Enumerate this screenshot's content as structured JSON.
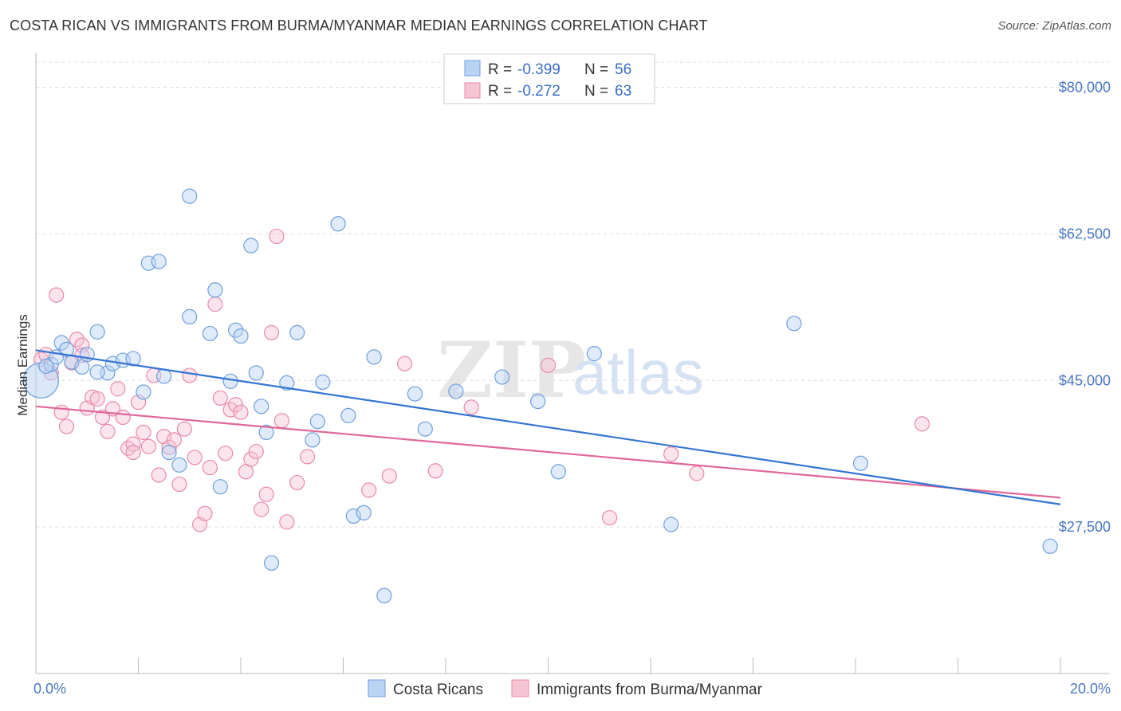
{
  "title": "COSTA RICAN VS IMMIGRANTS FROM BURMA/MYANMAR MEDIAN EARNINGS CORRELATION CHART",
  "source": "Source: ZipAtlas.com",
  "watermark": {
    "part1": "ZIP",
    "part2": "atlas"
  },
  "colors": {
    "blue_fill": "#b9d3f3",
    "blue_stroke": "#6e9fdc",
    "blue_line": "#3474d4",
    "pink_fill": "#f7c4d4",
    "pink_stroke": "#e88aa8",
    "pink_line": "#e0679a",
    "tick_text": "#4a78c2",
    "grid": "#dddddd"
  },
  "legend": {
    "rows": [
      {
        "r_label": "R = ",
        "r_value": "-0.399",
        "n_label": "N = ",
        "n_value": "56"
      },
      {
        "r_label": "R = ",
        "r_value": "-0.272",
        "n_label": "N = ",
        "n_value": "63"
      }
    ]
  },
  "chart_data": {
    "type": "scatter",
    "title": "COSTA RICAN VS IMMIGRANTS FROM BURMA/MYANMAR MEDIAN EARNINGS CORRELATION CHART",
    "xlabel": "",
    "ylabel": "Median Earnings",
    "xlim": [
      0,
      20
    ],
    "ylim": [
      10000,
      83000
    ],
    "x_tick_labels": [
      "0.0%",
      "20.0%"
    ],
    "y_ticks": [
      27500,
      45000,
      62500,
      80000
    ],
    "y_tick_labels": [
      "$27,500",
      "$45,000",
      "$62,500",
      "$80,000"
    ],
    "grid": "horizontal dashed",
    "legend_position": "top-center",
    "series": [
      {
        "name": "Costa Ricans",
        "color": "#6e9fdc",
        "trend": {
          "x": [
            0,
            20
          ],
          "y": [
            48600,
            30200
          ]
        },
        "points": [
          [
            0.1,
            45000
          ],
          [
            0.3,
            46900
          ],
          [
            0.4,
            47800
          ],
          [
            0.5,
            49500
          ],
          [
            0.6,
            48700
          ],
          [
            0.7,
            47200
          ],
          [
            0.9,
            46600
          ],
          [
            1.0,
            48100
          ],
          [
            1.2,
            50800
          ],
          [
            1.4,
            45900
          ],
          [
            1.5,
            47000
          ],
          [
            1.7,
            47400
          ],
          [
            1.9,
            47600
          ],
          [
            2.1,
            43600
          ],
          [
            2.2,
            59000
          ],
          [
            2.4,
            59200
          ],
          [
            2.5,
            45500
          ],
          [
            2.6,
            36400
          ],
          [
            2.8,
            34900
          ],
          [
            3.0,
            52600
          ],
          [
            3.0,
            67000
          ],
          [
            3.4,
            50600
          ],
          [
            3.5,
            55800
          ],
          [
            3.6,
            32300
          ],
          [
            3.8,
            44900
          ],
          [
            3.9,
            51000
          ],
          [
            4.0,
            50300
          ],
          [
            4.2,
            61100
          ],
          [
            4.3,
            45900
          ],
          [
            4.4,
            41900
          ],
          [
            4.5,
            38800
          ],
          [
            4.6,
            23200
          ],
          [
            4.9,
            44700
          ],
          [
            5.1,
            50700
          ],
          [
            5.4,
            37900
          ],
          [
            5.5,
            40100
          ],
          [
            5.6,
            44800
          ],
          [
            5.9,
            63700
          ],
          [
            6.1,
            40800
          ],
          [
            6.2,
            28800
          ],
          [
            6.4,
            29200
          ],
          [
            6.6,
            47800
          ],
          [
            6.8,
            19300
          ],
          [
            7.4,
            43400
          ],
          [
            7.6,
            39200
          ],
          [
            8.2,
            43700
          ],
          [
            9.1,
            45400
          ],
          [
            9.8,
            42500
          ],
          [
            10.2,
            34100
          ],
          [
            10.9,
            48200
          ],
          [
            12.4,
            27800
          ],
          [
            14.8,
            51800
          ],
          [
            16.1,
            35100
          ],
          [
            19.8,
            25200
          ],
          [
            0.2,
            46700
          ],
          [
            1.2,
            46000
          ]
        ]
      },
      {
        "name": "Immigrants from Burma/Myanmar",
        "color": "#e88aa8",
        "trend": {
          "x": [
            0,
            20
          ],
          "y": [
            41900,
            31000
          ]
        },
        "points": [
          [
            0.1,
            47500
          ],
          [
            0.2,
            48100
          ],
          [
            0.3,
            45900
          ],
          [
            0.4,
            55200
          ],
          [
            0.5,
            41200
          ],
          [
            0.6,
            39500
          ],
          [
            0.7,
            47100
          ],
          [
            0.8,
            49900
          ],
          [
            0.9,
            49200
          ],
          [
            1.0,
            41700
          ],
          [
            1.1,
            43000
          ],
          [
            1.2,
            42800
          ],
          [
            1.3,
            40600
          ],
          [
            1.4,
            38900
          ],
          [
            1.5,
            41600
          ],
          [
            1.6,
            44000
          ],
          [
            1.7,
            40600
          ],
          [
            1.8,
            36900
          ],
          [
            1.9,
            37400
          ],
          [
            2.0,
            42400
          ],
          [
            2.1,
            38800
          ],
          [
            2.2,
            37100
          ],
          [
            2.3,
            45600
          ],
          [
            2.4,
            33700
          ],
          [
            2.5,
            38300
          ],
          [
            2.6,
            37000
          ],
          [
            2.7,
            37900
          ],
          [
            2.8,
            32600
          ],
          [
            2.9,
            39200
          ],
          [
            3.0,
            45600
          ],
          [
            3.1,
            35800
          ],
          [
            3.2,
            27800
          ],
          [
            3.3,
            29100
          ],
          [
            3.4,
            34600
          ],
          [
            3.5,
            54100
          ],
          [
            3.6,
            42900
          ],
          [
            3.7,
            36300
          ],
          [
            3.8,
            41500
          ],
          [
            3.9,
            42100
          ],
          [
            4.0,
            41200
          ],
          [
            4.1,
            34100
          ],
          [
            4.2,
            35600
          ],
          [
            4.3,
            36500
          ],
          [
            4.4,
            29600
          ],
          [
            4.5,
            31400
          ],
          [
            4.6,
            50700
          ],
          [
            4.7,
            62200
          ],
          [
            4.8,
            40200
          ],
          [
            4.9,
            28100
          ],
          [
            5.1,
            32800
          ],
          [
            5.3,
            35900
          ],
          [
            6.5,
            31900
          ],
          [
            6.9,
            33600
          ],
          [
            7.2,
            47000
          ],
          [
            7.8,
            34200
          ],
          [
            8.5,
            41800
          ],
          [
            10.0,
            46800
          ],
          [
            11.2,
            28600
          ],
          [
            12.4,
            36200
          ],
          [
            12.9,
            33900
          ],
          [
            17.3,
            39800
          ],
          [
            0.9,
            48000
          ],
          [
            1.9,
            36400
          ]
        ]
      }
    ]
  }
}
